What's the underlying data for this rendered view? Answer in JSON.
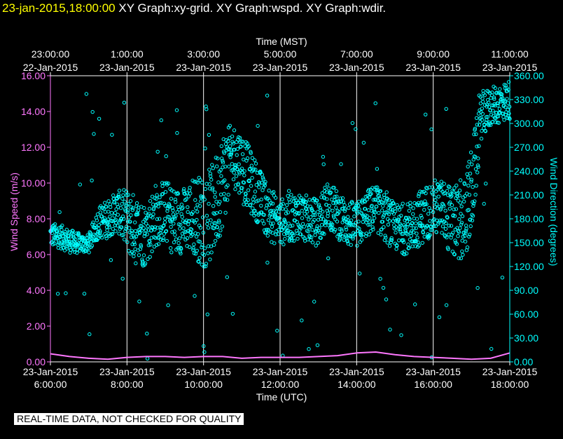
{
  "header": {
    "timestamp": "23-jan-2015,18:00:00",
    "graphs": [
      "XY Graph:xy-grid.",
      "XY Graph:wspd.",
      "XY Graph:wdir."
    ]
  },
  "footnote": "REAL-TIME DATA, NOT CHECKED FOR QUALITY",
  "colors": {
    "background": "#000000",
    "header_time": "#ffff00",
    "wind_speed": "#ff77ff",
    "wind_direction": "#00ffff",
    "grid": "#ffffff",
    "text": "#ffffff"
  },
  "chart_data": {
    "type": "scatter",
    "x_unit_bottom": "hours UTC",
    "xlim": [
      6,
      18
    ],
    "top_axis": {
      "label": "Time (MST)",
      "ticks": [
        {
          "x": 6,
          "time": "23:00:00",
          "date": "22-Jan-2015"
        },
        {
          "x": 8,
          "time": "1:00:00",
          "date": "23-Jan-2015"
        },
        {
          "x": 10,
          "time": "3:00:00",
          "date": "23-Jan-2015"
        },
        {
          "x": 12,
          "time": "5:00:00",
          "date": "23-Jan-2015"
        },
        {
          "x": 14,
          "time": "7:00:00",
          "date": "23-Jan-2015"
        },
        {
          "x": 16,
          "time": "9:00:00",
          "date": "23-Jan-2015"
        },
        {
          "x": 18,
          "time": "11:00:00",
          "date": "23-Jan-2015"
        }
      ]
    },
    "bottom_axis": {
      "label": "Time (UTC)",
      "ticks": [
        {
          "x": 6,
          "date": "23-Jan-2015",
          "time": "6:00:00"
        },
        {
          "x": 8,
          "date": "23-Jan-2015",
          "time": "8:00:00"
        },
        {
          "x": 10,
          "date": "23-Jan-2015",
          "time": "10:00:00"
        },
        {
          "x": 12,
          "date": "23-Jan-2015",
          "time": "12:00:00"
        },
        {
          "x": 14,
          "date": "23-Jan-2015",
          "time": "14:00:00"
        },
        {
          "x": 16,
          "date": "23-Jan-2015",
          "time": "16:00:00"
        },
        {
          "x": 18,
          "date": "23-Jan-2015",
          "time": "18:00:00"
        }
      ]
    },
    "left_axis": {
      "label": "Wind Speed (m/s)",
      "ylim": [
        0,
        16
      ],
      "ticks": [
        "0.00",
        "2.00",
        "4.00",
        "6.00",
        "8.00",
        "10.00",
        "12.00",
        "14.00",
        "16.00"
      ]
    },
    "right_axis": {
      "label": "Wind Direction (degrees)",
      "ylim": [
        0,
        360
      ],
      "ticks": [
        "0.00",
        "30.00",
        "60.00",
        "90.00",
        "120.00",
        "150.00",
        "180.00",
        "210.00",
        "240.00",
        "270.00",
        "300.00",
        "330.00",
        "360.00"
      ]
    },
    "grid": "vertical lines at top-axis ticks",
    "series": [
      {
        "name": "wspd",
        "axis": "left",
        "style": "line",
        "color": "#ff77ff",
        "x": [
          6.0,
          6.5,
          7.0,
          7.5,
          8.0,
          8.5,
          9.0,
          9.5,
          10.0,
          10.5,
          11.0,
          11.5,
          12.0,
          12.5,
          13.0,
          13.5,
          14.0,
          14.5,
          15.0,
          15.5,
          16.0,
          16.5,
          17.0,
          17.5,
          18.0
        ],
        "y": [
          0.45,
          0.3,
          0.2,
          0.15,
          0.25,
          0.3,
          0.3,
          0.25,
          0.3,
          0.3,
          0.2,
          0.25,
          0.25,
          0.25,
          0.3,
          0.35,
          0.5,
          0.55,
          0.4,
          0.3,
          0.25,
          0.2,
          0.15,
          0.2,
          0.5
        ]
      },
      {
        "name": "wdir",
        "axis": "right",
        "style": "open-circle",
        "color": "#00ffff",
        "x": [
          6.0,
          6.25,
          6.5,
          6.75,
          7.0,
          7.25,
          7.5,
          7.75,
          8.0,
          8.25,
          8.5,
          8.75,
          9.0,
          9.25,
          9.5,
          9.75,
          10.0,
          10.25,
          10.5,
          10.75,
          11.0,
          11.25,
          11.5,
          11.75,
          12.0,
          12.25,
          12.5,
          12.75,
          13.0,
          13.25,
          13.5,
          13.75,
          14.0,
          14.25,
          14.5,
          14.75,
          15.0,
          15.25,
          15.5,
          15.75,
          16.0,
          16.25,
          16.5,
          16.75,
          17.0,
          17.25,
          17.5,
          17.75,
          18.0
        ],
        "y_center": [
          160,
          158,
          152,
          150,
          148,
          175,
          180,
          190,
          178,
          165,
          160,
          185,
          190,
          175,
          180,
          185,
          175,
          190,
          230,
          260,
          250,
          225,
          205,
          185,
          175,
          180,
          185,
          178,
          175,
          200,
          185,
          175,
          170,
          185,
          195,
          180,
          170,
          165,
          175,
          185,
          195,
          190,
          175,
          170,
          210,
          310,
          320,
          325,
          330
        ],
        "y_spread": [
          15,
          15,
          15,
          12,
          12,
          20,
          25,
          25,
          40,
          45,
          40,
          40,
          40,
          45,
          40,
          50,
          60,
          60,
          60,
          40,
          40,
          40,
          35,
          35,
          30,
          30,
          30,
          30,
          30,
          30,
          30,
          30,
          30,
          30,
          30,
          30,
          30,
          30,
          35,
          35,
          35,
          40,
          45,
          45,
          60,
          30,
          25,
          25,
          25
        ]
      }
    ]
  }
}
